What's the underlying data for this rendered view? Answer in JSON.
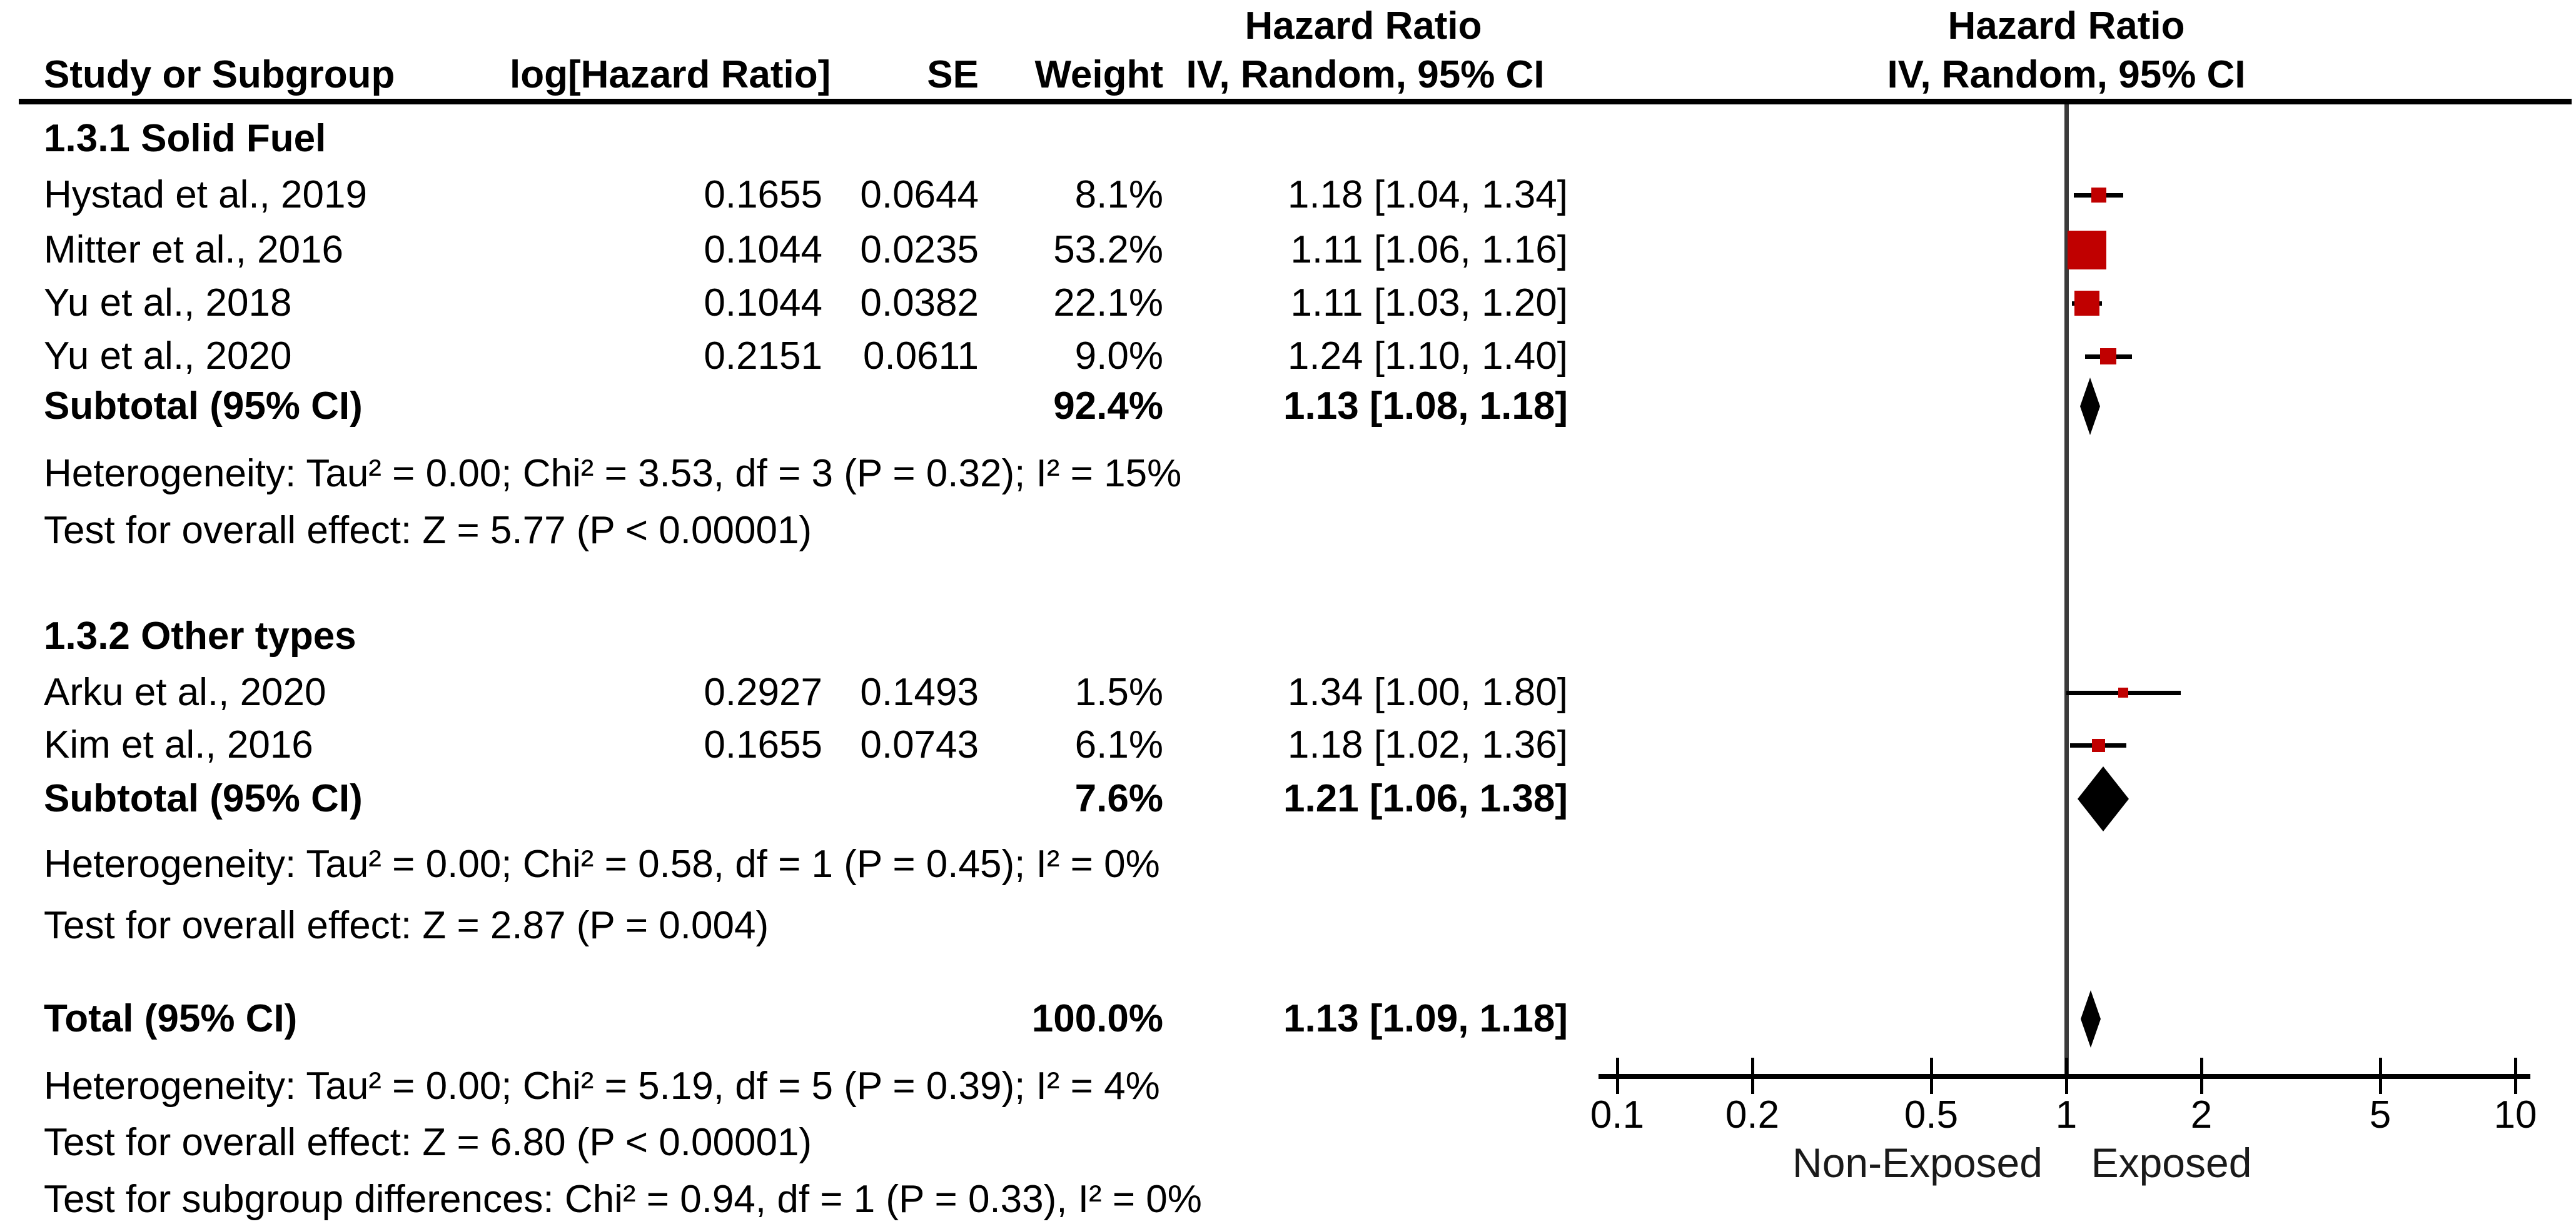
{
  "title": "Forest plot — Hazard Ratio (IV, Random, 95% CI)",
  "colors": {
    "study_marker_red": "#c00000",
    "pooled_diamond_black": "#000000",
    "axis_black": "#000000",
    "null_line_gray": "#3a3a3a"
  },
  "table": {
    "left_group_header": "Hazard Ratio",
    "column_headers": {
      "study": "Study or Subgroup",
      "loghr": "log[Hazard Ratio]",
      "se": "SE",
      "weight": "Weight",
      "ci": "IV, Random, 95% CI"
    },
    "plot_header": {
      "line1": "Hazard Ratio",
      "line2": "IV, Random, 95% CI"
    },
    "rows": [
      {
        "kind": "section",
        "study": "1.3.1 Solid Fuel"
      },
      {
        "kind": "study",
        "study": "Hystad et al., 2019",
        "loghr": "0.1655",
        "se": "0.0644",
        "weight": "8.1%",
        "ci": "1.18 [1.04, 1.34]"
      },
      {
        "kind": "study",
        "study": "Mitter et al., 2016",
        "loghr": "0.1044",
        "se": "0.0235",
        "weight": "53.2%",
        "ci": "1.11 [1.06, 1.16]"
      },
      {
        "kind": "study",
        "study": "Yu et al., 2018",
        "loghr": "0.1044",
        "se": "0.0382",
        "weight": "22.1%",
        "ci": "1.11 [1.03, 1.20]"
      },
      {
        "kind": "study",
        "study": "Yu et al., 2020",
        "loghr": "0.2151",
        "se": "0.0611",
        "weight": "9.0%",
        "ci": "1.24 [1.10, 1.40]"
      },
      {
        "kind": "subtotal",
        "study": "Subtotal (95% CI)",
        "weight": "92.4%",
        "ci": "1.13 [1.08, 1.18]"
      },
      {
        "kind": "note",
        "study": "Heterogeneity: Tau² = 0.00; Chi² = 3.53, df = 3 (P = 0.32); I² = 15%"
      },
      {
        "kind": "note",
        "study": "Test for overall effect: Z = 5.77 (P < 0.00001)"
      },
      {
        "kind": "section",
        "study": "1.3.2 Other types"
      },
      {
        "kind": "study",
        "study": "Arku et al., 2020",
        "loghr": "0.2927",
        "se": "0.1493",
        "weight": "1.5%",
        "ci": "1.34 [1.00, 1.80]"
      },
      {
        "kind": "study",
        "study": "Kim et al., 2016",
        "loghr": "0.1655",
        "se": "0.0743",
        "weight": "6.1%",
        "ci": "1.18 [1.02, 1.36]"
      },
      {
        "kind": "subtotal",
        "study": "Subtotal (95% CI)",
        "weight": "7.6%",
        "ci": "1.21 [1.06, 1.38]"
      },
      {
        "kind": "note",
        "study": "Heterogeneity: Tau² = 0.00; Chi² = 0.58, df = 1 (P = 0.45); I² = 0%"
      },
      {
        "kind": "note",
        "study": "Test for overall effect: Z = 2.87 (P = 0.004)"
      },
      {
        "kind": "subtotal",
        "study": "Total (95% CI)",
        "weight": "100.0%",
        "ci": "1.13 [1.09, 1.18]"
      },
      {
        "kind": "note",
        "study": "Heterogeneity: Tau² = 0.00; Chi² = 5.19, df = 5 (P = 0.39); I² = 4%"
      },
      {
        "kind": "note",
        "study": "Test for overall effect: Z = 6.80 (P < 0.00001)"
      },
      {
        "kind": "note",
        "study": "Test for subgroup differences: Chi² = 0.94, df = 1 (P = 0.33), I² = 0%"
      }
    ]
  },
  "chart_data": {
    "type": "scatter",
    "subtype": "forest-plot",
    "effect_measure": "Hazard Ratio",
    "model": "IV, Random, 95% CI",
    "x_scale": "log10",
    "x_ticks": [
      0.1,
      0.2,
      0.5,
      1,
      2,
      5,
      10
    ],
    "x_axis_labels": {
      "left": "Non-Exposed",
      "right": "Exposed"
    },
    "groups": [
      {
        "name": "1.3.1 Solid Fuel",
        "studies": [
          {
            "row": 1,
            "name": "Hystad et al., 2019",
            "log_hr": 0.1655,
            "se": 0.0644,
            "weight_pct": 8.1,
            "hr": 1.18,
            "ci_low": 1.04,
            "ci_high": 1.34
          },
          {
            "row": 2,
            "name": "Mitter et al., 2016",
            "log_hr": 0.1044,
            "se": 0.0235,
            "weight_pct": 53.2,
            "hr": 1.11,
            "ci_low": 1.06,
            "ci_high": 1.16
          },
          {
            "row": 3,
            "name": "Yu et al., 2018",
            "log_hr": 0.1044,
            "se": 0.0382,
            "weight_pct": 22.1,
            "hr": 1.11,
            "ci_low": 1.03,
            "ci_high": 1.2
          },
          {
            "row": 4,
            "name": "Yu et al., 2020",
            "log_hr": 0.2151,
            "se": 0.0611,
            "weight_pct": 9.0,
            "hr": 1.24,
            "ci_low": 1.1,
            "ci_high": 1.4
          }
        ],
        "subtotal": {
          "row": 5,
          "weight_pct": 92.4,
          "hr": 1.13,
          "ci_low": 1.08,
          "ci_high": 1.18
        },
        "heterogeneity": "Tau² = 0.00; Chi² = 3.53, df = 3 (P = 0.32); I² = 15%",
        "overall_effect": "Z = 5.77 (P < 0.00001)"
      },
      {
        "name": "1.3.2 Other types",
        "studies": [
          {
            "row": 9,
            "name": "Arku et al., 2020",
            "log_hr": 0.2927,
            "se": 0.1493,
            "weight_pct": 1.5,
            "hr": 1.34,
            "ci_low": 1.0,
            "ci_high": 1.8
          },
          {
            "row": 10,
            "name": "Kim et al., 2016",
            "log_hr": 0.1655,
            "se": 0.0743,
            "weight_pct": 6.1,
            "hr": 1.18,
            "ci_low": 1.02,
            "ci_high": 1.36
          }
        ],
        "subtotal": {
          "row": 11,
          "weight_pct": 7.6,
          "hr": 1.21,
          "ci_low": 1.06,
          "ci_high": 1.38
        },
        "heterogeneity": "Tau² = 0.00; Chi² = 0.58, df = 1 (P = 0.45); I² = 0%",
        "overall_effect": "Z = 2.87 (P = 0.004)"
      }
    ],
    "total": {
      "row": 14,
      "weight_pct": 100.0,
      "hr": 1.13,
      "ci_low": 1.09,
      "ci_high": 1.18,
      "heterogeneity": "Tau² = 0.00; Chi² = 5.19, df = 5 (P = 0.39); I² = 4%",
      "overall_effect": "Z = 6.80 (P < 0.00001)",
      "subgroup_differences": "Chi² = 0.94, df = 1 (P = 0.33), I² = 0%"
    }
  }
}
